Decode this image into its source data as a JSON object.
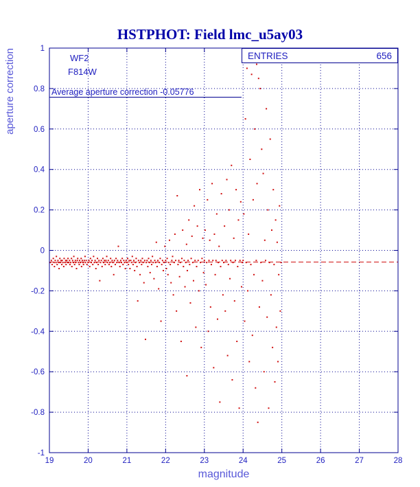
{
  "title": "HSTPHOT: Field lmc_u5ay03",
  "annotations": {
    "camera": "WF2",
    "filter": "F814W",
    "average_label": "Average aperture correction -0.05776",
    "entries_label": "ENTRIES",
    "entries_value": "656"
  },
  "colors": {
    "navy": "#000090",
    "text_blue": "#2020c0",
    "axis_label": "#5858d8",
    "point_red": "#d01010",
    "title_blue": "#0000a8"
  },
  "chart_data": {
    "type": "scatter",
    "title": "HSTPHOT: Field lmc_u5ay03",
    "xlabel": "magnitude",
    "ylabel": "aperture correction",
    "xlim": [
      19,
      28
    ],
    "ylim": [
      -1,
      1
    ],
    "x_ticks": [
      19,
      20,
      21,
      22,
      23,
      24,
      25,
      26,
      27,
      28
    ],
    "y_ticks": [
      -1,
      -0.8,
      -0.6,
      -0.4,
      -0.2,
      0,
      0.2,
      0.4,
      0.6,
      0.8,
      1
    ],
    "grid": true,
    "legend": "none",
    "entries": 656,
    "average_aperture_correction": -0.05776,
    "reference_line_y": -0.05776,
    "points": [
      [
        19.02,
        -0.06
      ],
      [
        19.05,
        -0.05
      ],
      [
        19.07,
        -0.07
      ],
      [
        19.1,
        -0.04
      ],
      [
        19.12,
        -0.06
      ],
      [
        19.13,
        -0.08
      ],
      [
        19.15,
        -0.05
      ],
      [
        19.17,
        -0.06
      ],
      [
        19.18,
        -0.03
      ],
      [
        19.2,
        -0.07
      ],
      [
        19.22,
        -0.05
      ],
      [
        19.24,
        -0.06
      ],
      [
        19.25,
        -0.09
      ],
      [
        19.27,
        -0.04
      ],
      [
        19.28,
        -0.06
      ],
      [
        19.3,
        -0.05
      ],
      [
        19.32,
        -0.07
      ],
      [
        19.33,
        -0.05
      ],
      [
        19.35,
        -0.06
      ],
      [
        19.37,
        -0.08
      ],
      [
        19.38,
        -0.04
      ],
      [
        19.4,
        -0.06
      ],
      [
        19.42,
        -0.05
      ],
      [
        19.43,
        -0.07
      ],
      [
        19.45,
        -0.05
      ],
      [
        19.47,
        -0.06
      ],
      [
        19.48,
        -0.04
      ],
      [
        19.5,
        -0.06
      ],
      [
        19.52,
        -0.05
      ],
      [
        19.53,
        -0.07
      ],
      [
        19.55,
        -0.06
      ],
      [
        19.57,
        -0.04
      ],
      [
        19.58,
        -0.08
      ],
      [
        19.6,
        -0.05
      ],
      [
        19.62,
        -0.06
      ],
      [
        19.63,
        -0.03
      ],
      [
        19.65,
        -0.07
      ],
      [
        19.67,
        -0.05
      ],
      [
        19.68,
        -0.06
      ],
      [
        19.7,
        -0.09
      ],
      [
        19.72,
        -0.05
      ],
      [
        19.73,
        -0.04
      ],
      [
        19.75,
        -0.06
      ],
      [
        19.77,
        -0.07
      ],
      [
        19.78,
        -0.05
      ],
      [
        19.8,
        -0.06
      ],
      [
        19.82,
        -0.04
      ],
      [
        19.83,
        -0.08
      ],
      [
        19.85,
        -0.05
      ],
      [
        19.87,
        -0.06
      ],
      [
        19.88,
        -0.07
      ],
      [
        19.9,
        -0.05
      ],
      [
        19.92,
        -0.03
      ],
      [
        19.93,
        -0.06
      ],
      [
        19.95,
        -0.05
      ],
      [
        19.97,
        -0.07
      ],
      [
        20.0,
        -0.06
      ],
      [
        20.02,
        -0.05
      ],
      [
        20.04,
        -0.08
      ],
      [
        20.06,
        -0.04
      ],
      [
        20.08,
        -0.06
      ],
      [
        20.1,
        -0.05
      ],
      [
        20.12,
        -0.07
      ],
      [
        20.14,
        -0.03
      ],
      [
        20.16,
        -0.06
      ],
      [
        20.18,
        -0.05
      ],
      [
        20.2,
        -0.09
      ],
      [
        20.22,
        -0.06
      ],
      [
        20.24,
        -0.04
      ],
      [
        20.26,
        -0.07
      ],
      [
        20.28,
        -0.05
      ],
      [
        20.3,
        -0.15
      ],
      [
        20.32,
        -0.06
      ],
      [
        20.34,
        -0.05
      ],
      [
        20.36,
        -0.08
      ],
      [
        20.38,
        -0.04
      ],
      [
        20.4,
        -0.06
      ],
      [
        20.42,
        -0.05
      ],
      [
        20.44,
        -0.07
      ],
      [
        20.46,
        -0.05
      ],
      [
        20.48,
        -0.03
      ],
      [
        20.5,
        -0.06
      ],
      [
        20.52,
        -0.05
      ],
      [
        20.54,
        -0.07
      ],
      [
        20.56,
        -0.06
      ],
      [
        20.58,
        -0.04
      ],
      [
        20.6,
        -0.08
      ],
      [
        20.62,
        -0.05
      ],
      [
        20.64,
        -0.06
      ],
      [
        20.66,
        -0.12
      ],
      [
        20.68,
        -0.05
      ],
      [
        20.7,
        -0.07
      ],
      [
        20.72,
        -0.04
      ],
      [
        20.74,
        -0.06
      ],
      [
        20.76,
        -0.05
      ],
      [
        20.78,
        0.02
      ],
      [
        20.8,
        -0.06
      ],
      [
        20.82,
        -0.08
      ],
      [
        20.84,
        -0.05
      ],
      [
        20.86,
        -0.06
      ],
      [
        20.88,
        -0.04
      ],
      [
        20.9,
        -0.07
      ],
      [
        20.92,
        -0.05
      ],
      [
        20.94,
        -0.06
      ],
      [
        20.96,
        -0.09
      ],
      [
        20.98,
        -0.05
      ],
      [
        21.0,
        -0.06
      ],
      [
        21.02,
        -0.04
      ],
      [
        21.04,
        -0.07
      ],
      [
        21.06,
        -0.05
      ],
      [
        21.08,
        -0.09
      ],
      [
        21.1,
        -0.05
      ],
      [
        21.12,
        -0.06
      ],
      [
        21.14,
        -0.03
      ],
      [
        21.16,
        -0.07
      ],
      [
        21.18,
        -0.05
      ],
      [
        21.2,
        -0.1
      ],
      [
        21.22,
        -0.06
      ],
      [
        21.24,
        -0.04
      ],
      [
        21.26,
        -0.08
      ],
      [
        21.28,
        -0.25
      ],
      [
        21.3,
        -0.05
      ],
      [
        21.32,
        -0.06
      ],
      [
        21.34,
        -0.12
      ],
      [
        21.36,
        -0.05
      ],
      [
        21.38,
        -0.07
      ],
      [
        21.4,
        -0.04
      ],
      [
        21.42,
        -0.06
      ],
      [
        21.44,
        -0.16
      ],
      [
        21.46,
        -0.05
      ],
      [
        21.48,
        -0.44
      ],
      [
        21.5,
        -0.06
      ],
      [
        21.52,
        -0.05
      ],
      [
        21.54,
        -0.08
      ],
      [
        21.56,
        -0.04
      ],
      [
        21.58,
        -0.06
      ],
      [
        21.6,
        -0.11
      ],
      [
        21.62,
        -0.05
      ],
      [
        21.64,
        -0.07
      ],
      [
        21.66,
        -0.03
      ],
      [
        21.68,
        -0.06
      ],
      [
        21.7,
        -0.14
      ],
      [
        21.72,
        -0.05
      ],
      [
        21.74,
        -0.06
      ],
      [
        21.76,
        0.04
      ],
      [
        21.78,
        -0.08
      ],
      [
        21.8,
        -0.05
      ],
      [
        21.82,
        -0.19
      ],
      [
        21.84,
        -0.06
      ],
      [
        21.86,
        -0.04
      ],
      [
        21.88,
        -0.35
      ],
      [
        21.9,
        -0.07
      ],
      [
        21.92,
        -0.05
      ],
      [
        21.94,
        -0.1
      ],
      [
        21.96,
        -0.06
      ],
      [
        21.98,
        0.02
      ],
      [
        22.0,
        -0.05
      ],
      [
        22.02,
        -0.09
      ],
      [
        22.04,
        -0.04
      ],
      [
        22.06,
        -0.12
      ],
      [
        22.08,
        -0.06
      ],
      [
        22.1,
        0.05
      ],
      [
        22.12,
        -0.07
      ],
      [
        22.14,
        -0.16
      ],
      [
        22.16,
        -0.05
      ],
      [
        22.18,
        -0.03
      ],
      [
        22.2,
        -0.22
      ],
      [
        22.22,
        -0.06
      ],
      [
        22.24,
        0.08
      ],
      [
        22.26,
        -0.05
      ],
      [
        22.28,
        -0.3
      ],
      [
        22.3,
        0.27
      ],
      [
        22.32,
        -0.07
      ],
      [
        22.34,
        -0.05
      ],
      [
        22.36,
        -0.13
      ],
      [
        22.38,
        -0.06
      ],
      [
        22.4,
        -0.45
      ],
      [
        22.42,
        -0.04
      ],
      [
        22.44,
        0.1
      ],
      [
        22.46,
        -0.08
      ],
      [
        22.48,
        -0.05
      ],
      [
        22.5,
        -0.18
      ],
      [
        22.52,
        -0.06
      ],
      [
        22.54,
        0.03
      ],
      [
        22.55,
        -0.62
      ],
      [
        22.56,
        -0.1
      ],
      [
        22.58,
        -0.05
      ],
      [
        22.6,
        0.15
      ],
      [
        22.62,
        -0.07
      ],
      [
        22.64,
        -0.26
      ],
      [
        22.66,
        -0.04
      ],
      [
        22.68,
        0.07
      ],
      [
        22.7,
        -0.06
      ],
      [
        22.72,
        -0.15
      ],
      [
        22.74,
        0.22
      ],
      [
        22.76,
        -0.05
      ],
      [
        22.78,
        -0.38
      ],
      [
        22.8,
        -0.08
      ],
      [
        22.82,
        0.12
      ],
      [
        22.84,
        -0.05
      ],
      [
        22.86,
        -0.2
      ],
      [
        22.88,
        0.3
      ],
      [
        22.9,
        -0.06
      ],
      [
        22.92,
        -0.48
      ],
      [
        22.94,
        -0.04
      ],
      [
        22.96,
        0.06
      ],
      [
        22.98,
        -0.11
      ],
      [
        23.0,
        -0.05
      ],
      [
        23.02,
        0.1
      ],
      [
        23.04,
        -0.17
      ],
      [
        23.06,
        -0.06
      ],
      [
        23.08,
        0.25
      ],
      [
        23.1,
        -0.4
      ],
      [
        23.12,
        -0.05
      ],
      [
        23.14,
        0.05
      ],
      [
        23.16,
        -0.28
      ],
      [
        23.18,
        -0.07
      ],
      [
        23.2,
        0.33
      ],
      [
        23.22,
        -0.05
      ],
      [
        23.24,
        -0.58
      ],
      [
        23.26,
        0.08
      ],
      [
        23.28,
        -0.12
      ],
      [
        23.3,
        -0.05
      ],
      [
        23.32,
        0.18
      ],
      [
        23.34,
        -0.34
      ],
      [
        23.36,
        -0.06
      ],
      [
        23.38,
        0.02
      ],
      [
        23.4,
        -0.75
      ],
      [
        23.42,
        -0.08
      ],
      [
        23.44,
        0.28
      ],
      [
        23.46,
        -0.05
      ],
      [
        23.48,
        -0.22
      ],
      [
        23.5,
        -0.06
      ],
      [
        23.52,
        0.12
      ],
      [
        23.54,
        -0.3
      ],
      [
        23.56,
        -0.05
      ],
      [
        23.58,
        0.35
      ],
      [
        23.6,
        -0.52
      ],
      [
        23.62,
        -0.07
      ],
      [
        23.64,
        0.2
      ],
      [
        23.66,
        -0.14
      ],
      [
        23.68,
        -0.05
      ],
      [
        23.7,
        0.42
      ],
      [
        23.72,
        -0.64
      ],
      [
        23.74,
        -0.06
      ],
      [
        23.76,
        0.06
      ],
      [
        23.78,
        -0.25
      ],
      [
        23.8,
        -0.05
      ],
      [
        23.82,
        0.3
      ],
      [
        23.84,
        -0.45
      ],
      [
        23.86,
        -0.08
      ],
      [
        23.88,
        0.15
      ],
      [
        23.9,
        -0.78
      ],
      [
        23.92,
        -0.05
      ],
      [
        23.94,
        0.24
      ],
      [
        23.96,
        -0.18
      ],
      [
        23.98,
        -0.06
      ],
      [
        24.0,
        -0.05
      ],
      [
        24.02,
        0.18
      ],
      [
        24.04,
        -0.35
      ],
      [
        24.06,
        0.65
      ],
      [
        24.08,
        -0.06
      ],
      [
        24.1,
        0.9
      ],
      [
        24.12,
        -0.2
      ],
      [
        24.14,
        0.08
      ],
      [
        24.16,
        -0.55
      ],
      [
        24.18,
        0.45
      ],
      [
        24.2,
        -0.07
      ],
      [
        24.22,
        0.87
      ],
      [
        24.24,
        -0.42
      ],
      [
        24.26,
        0.25
      ],
      [
        24.28,
        -0.12
      ],
      [
        24.3,
        0.6
      ],
      [
        24.32,
        -0.68
      ],
      [
        24.34,
        -0.05
      ],
      [
        24.35,
        0.92
      ],
      [
        24.36,
        0.33
      ],
      [
        24.38,
        -0.85
      ],
      [
        24.4,
        0.85
      ],
      [
        24.42,
        -0.28
      ],
      [
        24.44,
        0.8
      ],
      [
        24.46,
        -0.06
      ],
      [
        24.48,
        0.5
      ],
      [
        24.5,
        -0.15
      ],
      [
        24.52,
        0.38
      ],
      [
        24.54,
        -0.6
      ],
      [
        24.56,
        0.05
      ],
      [
        24.58,
        -0.05
      ],
      [
        24.6,
        0.7
      ],
      [
        24.62,
        -0.33
      ],
      [
        24.64,
        0.2
      ],
      [
        24.66,
        -0.78
      ],
      [
        24.68,
        -0.06
      ],
      [
        24.7,
        0.55
      ],
      [
        24.72,
        -0.22
      ],
      [
        24.74,
        0.1
      ],
      [
        24.76,
        -0.48
      ],
      [
        24.78,
        0.3
      ],
      [
        24.8,
        -0.07
      ],
      [
        24.82,
        -0.65
      ],
      [
        24.84,
        0.15
      ],
      [
        24.86,
        -0.38
      ],
      [
        24.88,
        0.04
      ],
      [
        24.9,
        -0.55
      ],
      [
        24.92,
        -0.12
      ],
      [
        24.94,
        0.22
      ],
      [
        24.96,
        -0.3
      ],
      [
        24.98,
        -0.06
      ]
    ]
  }
}
